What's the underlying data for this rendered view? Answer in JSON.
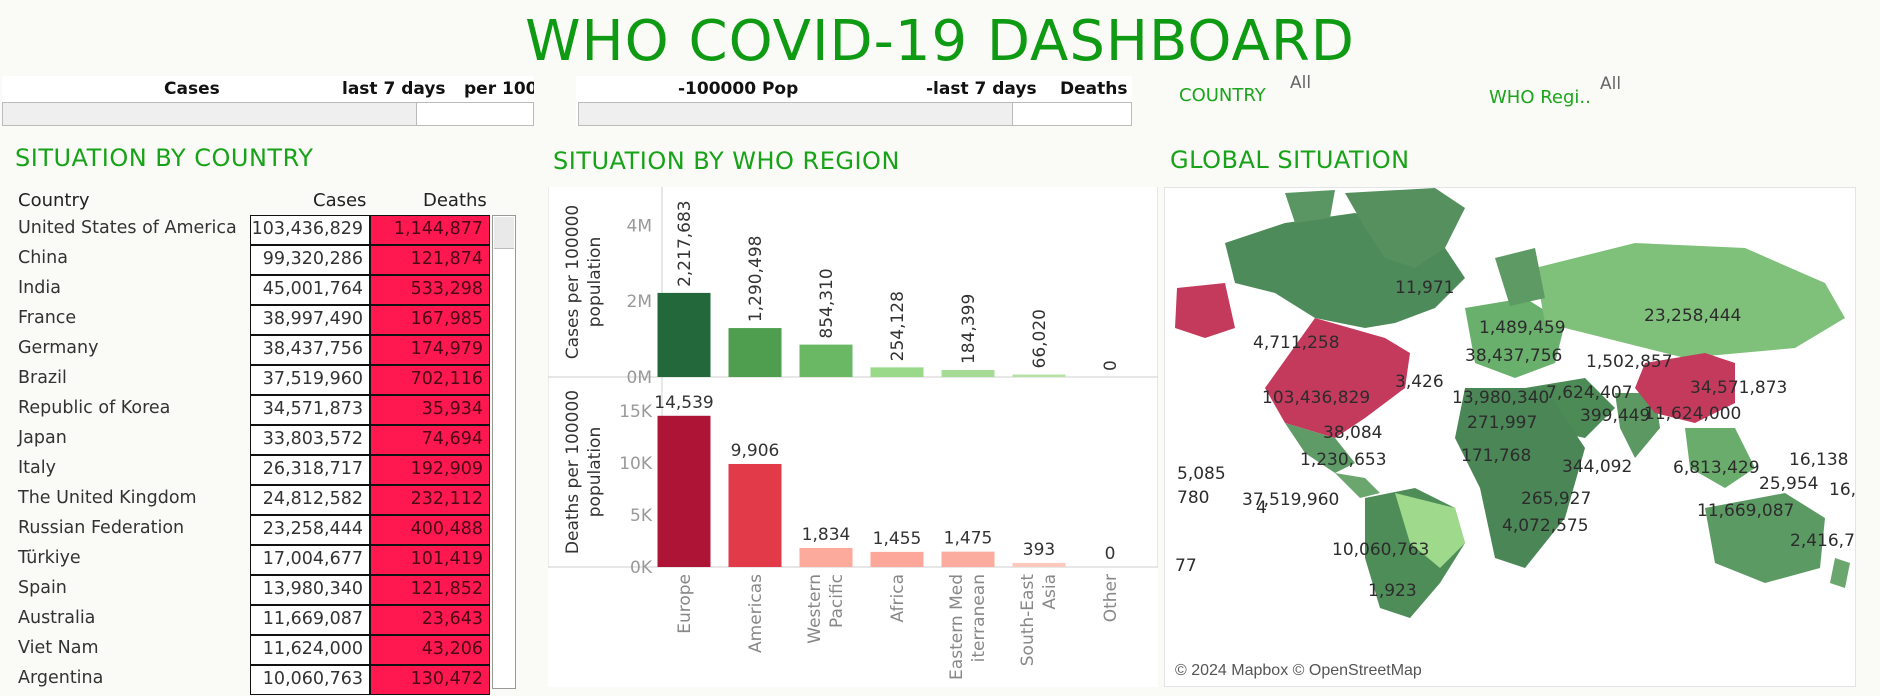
{
  "dashboard": {
    "title": "WHO COVID-19 DASHBOARD"
  },
  "params": {
    "left": {
      "col1": "Cases",
      "col2": "last 7 days",
      "col3": "per 100"
    },
    "right": {
      "col1": "-100000 Pop",
      "col2": "-last 7 days",
      "col3": "Deaths"
    }
  },
  "filters": {
    "country": {
      "label": "COUNTRY",
      "value": "All"
    },
    "region": {
      "label": "WHO Regi..",
      "value": "All"
    }
  },
  "country_section": {
    "title": "SITUATION BY COUNTRY",
    "headers": {
      "country": "Country",
      "cases": "Cases",
      "deaths": "Deaths"
    },
    "rows": [
      {
        "country": "United States of America",
        "cases": "103,436,829",
        "deaths": "1,144,877"
      },
      {
        "country": "China",
        "cases": "99,320,286",
        "deaths": "121,874"
      },
      {
        "country": "India",
        "cases": "45,001,764",
        "deaths": "533,298"
      },
      {
        "country": "France",
        "cases": "38,997,490",
        "deaths": "167,985"
      },
      {
        "country": "Germany",
        "cases": "38,437,756",
        "deaths": "174,979"
      },
      {
        "country": "Brazil",
        "cases": "37,519,960",
        "deaths": "702,116"
      },
      {
        "country": "Republic of Korea",
        "cases": "34,571,873",
        "deaths": "35,934"
      },
      {
        "country": "Japan",
        "cases": "33,803,572",
        "deaths": "74,694"
      },
      {
        "country": "Italy",
        "cases": "26,318,717",
        "deaths": "192,909"
      },
      {
        "country": "The United Kingdom",
        "cases": "24,812,582",
        "deaths": "232,112"
      },
      {
        "country": "Russian Federation",
        "cases": "23,258,444",
        "deaths": "400,488"
      },
      {
        "country": "Türkiye",
        "cases": "17,004,677",
        "deaths": "101,419"
      },
      {
        "country": "Spain",
        "cases": "13,980,340",
        "deaths": "121,852"
      },
      {
        "country": "Australia",
        "cases": "11,669,087",
        "deaths": "23,643"
      },
      {
        "country": "Viet Nam",
        "cases": "11,624,000",
        "deaths": "43,206"
      },
      {
        "country": "Argentina",
        "cases": "10,060,763",
        "deaths": "130,472"
      }
    ]
  },
  "region_section": {
    "title": "SITUATION BY WHO REGION"
  },
  "chart_data": [
    {
      "type": "bar",
      "ylabel": "Cases per 100000 population",
      "categories": [
        "Europe",
        "Americas",
        "Western Pacific",
        "Africa",
        "Eastern Mediterranean",
        "South-East Asia",
        "Other"
      ],
      "category_labels": [
        [
          "Europe"
        ],
        [
          "Americas"
        ],
        [
          "Western",
          "Pacific"
        ],
        [
          "Africa"
        ],
        [
          "Eastern Med",
          "iterranean"
        ],
        [
          "South-East",
          "Asia"
        ],
        [
          "Other"
        ]
      ],
      "values": [
        2217683,
        1290498,
        854310,
        254128,
        184399,
        66020,
        0
      ],
      "value_labels": [
        "2,217,683",
        "1,290,498",
        "854,310",
        "254,128",
        "184,399",
        "66,020",
        "0"
      ],
      "colors": [
        "#22683a",
        "#4f9e4f",
        "#6ab863",
        "#9ad98a",
        "#a6db95",
        "#b6e2a5",
        "#c8e8bc"
      ],
      "ylim": [
        0,
        4800000
      ],
      "yticks": [
        0,
        2000000,
        4000000
      ],
      "ytick_labels": [
        "0M",
        "2M",
        "4M"
      ]
    },
    {
      "type": "bar",
      "ylabel": "Deaths per 100000 population",
      "categories": [
        "Europe",
        "Americas",
        "Western Pacific",
        "Africa",
        "Eastern Mediterranean",
        "South-East Asia",
        "Other"
      ],
      "values": [
        14539,
        9906,
        1834,
        1455,
        1475,
        393,
        0
      ],
      "value_labels": [
        "14,539",
        "9,906",
        "1,834",
        "1,455",
        "1,475",
        "393",
        "0"
      ],
      "colors": [
        "#ad1436",
        "#e23a48",
        "#fcaa9c",
        "#fca79a",
        "#fcac9e",
        "#fdc9bd",
        "#fddad2"
      ],
      "ylim": [
        0,
        17500
      ],
      "yticks": [
        0,
        5000,
        10000,
        15000
      ],
      "ytick_labels": [
        "0K",
        "5K",
        "10K",
        "15K"
      ]
    }
  ],
  "global_section": {
    "title": "GLOBAL SITUATION",
    "attribution": "© 2024 Mapbox © OpenStreetMap",
    "map_labels": [
      "11,971",
      "4,711,258",
      "103,436,829",
      "3,426",
      "38,084",
      "1,230,653",
      "5,085",
      "780",
      "4",
      "77",
      "37,519,960",
      "10,060,763",
      "1,923",
      "1,489,459",
      "38,437,756",
      "13,980,340",
      "271,997",
      "171,768",
      "1,502,857",
      "7,624,407",
      "399,449",
      "23,258,444",
      "34,571,873",
      "11,624,000",
      "344,092",
      "265,927",
      "4,072,575",
      "6,813,429",
      "16,138",
      "25,954",
      "16,",
      "11,669,087",
      "2,416,7"
    ]
  },
  "colors": {
    "brand_green": "#0e9a12",
    "deaths_red": "#ff1850"
  }
}
